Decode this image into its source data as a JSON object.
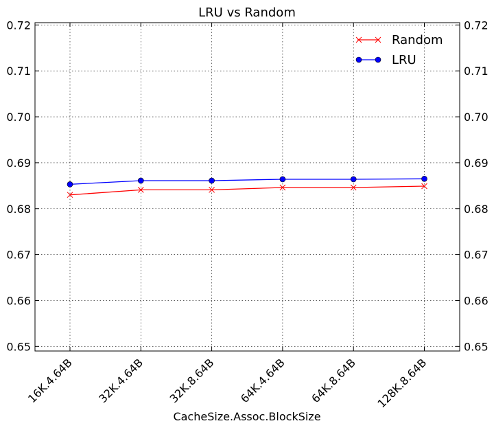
{
  "chart_data": {
    "type": "line",
    "title": "LRU vs Random",
    "xlabel": "CacheSize.Assoc.BlockSize",
    "ylabel": "",
    "categories": [
      "16K.4.64B",
      "32K.4.64B",
      "32K.8.64B",
      "64K.4.64B",
      "64K.8.64B",
      "128K.8.64B"
    ],
    "ylim": [
      0.649,
      0.7205
    ],
    "yticks": [
      "0.65",
      "0.66",
      "0.67",
      "0.68",
      "0.69",
      "0.70",
      "0.71",
      "0.72"
    ],
    "grid": true,
    "legend_position": "top-right",
    "series": [
      {
        "name": "Random",
        "color": "#ff0000",
        "marker": "x",
        "values": [
          0.683,
          0.6841,
          0.6841,
          0.6846,
          0.6846,
          0.6849
        ]
      },
      {
        "name": "LRU",
        "color": "#0000ff",
        "marker": "circle",
        "values": [
          0.6853,
          0.6861,
          0.6861,
          0.6864,
          0.6864,
          0.6865
        ]
      }
    ]
  }
}
